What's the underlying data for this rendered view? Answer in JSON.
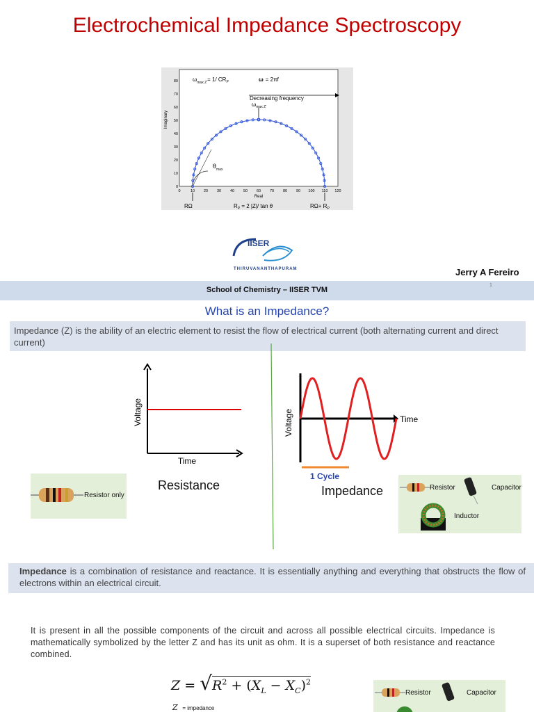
{
  "slide1": {
    "title": "Electrochemical Impedance Spectroscopy",
    "figure": {
      "omega_label": "ω",
      "omega_sub": "max Z'",
      "omega_eq": "= 1/ CR",
      "p_sub": "P",
      "omega2": "ω",
      "omega2_eq": "= 2πf",
      "decreasing": "Decreasing frequency",
      "omega_top": "ω",
      "omega_top_sub": "max Z'",
      "y_label": "Imaginary",
      "x_label": "Real",
      "theta": "θ",
      "theta_sub": "max",
      "yticks": [
        0,
        10,
        20,
        30,
        40,
        50,
        60,
        70,
        80
      ],
      "xticks": [
        0,
        10,
        20,
        30,
        40,
        50,
        60,
        70,
        80,
        90,
        100,
        110,
        120
      ],
      "r_omega": "RΩ",
      "rp_formula": "R",
      "rp_formula_rest": " = 2 |Z|/ tan θ",
      "r_sum": "RΩ+ R"
    },
    "logo": {
      "name": "IISER",
      "place": "THIRUVANANTHAPURAM"
    },
    "author": "Jerry A Fereiro",
    "footer": "School of Chemistry – IISER TVM",
    "page": "1"
  },
  "slide2": {
    "heading": "What is an Impedance?",
    "definition": "Impedance (Z) is the ability of an electric element to resist the flow of electrical  current (both alternating current and direct current)",
    "left_graph": {
      "y_label": "Voltage",
      "x_label": "Time",
      "caption": "Resistance",
      "resistor": "Resistor only"
    },
    "right_graph": {
      "y_label": "Voltage",
      "x_label": "Time",
      "cycle": "1 Cycle",
      "caption": "Impedance",
      "resistor": "Resistor",
      "capacitor": "Capacitor",
      "inductor": "Inductor"
    },
    "box": {
      "bold": "Impedance",
      "text": " is a combination of resistance and reactance. It is essentially anything and everything that obstructs the flow of electrons within an electrical circuit."
    },
    "paragraph": "It is present in all the possible components of the circuit and across all possible electrical circuits. Impedance is mathematically symbolized by the letter Z and has its unit as ohm. It is a superset of both resistance and reactance combined.",
    "formula": {
      "lhs": "Z",
      "r": "R",
      "exp": "2",
      "x": "X",
      "l": "L",
      "c": "C"
    },
    "legend": {
      "symbol": "Z",
      "text": "= impedance"
    },
    "bottom": {
      "resistor": "Resistor",
      "capacitor": "Capacitor"
    }
  }
}
